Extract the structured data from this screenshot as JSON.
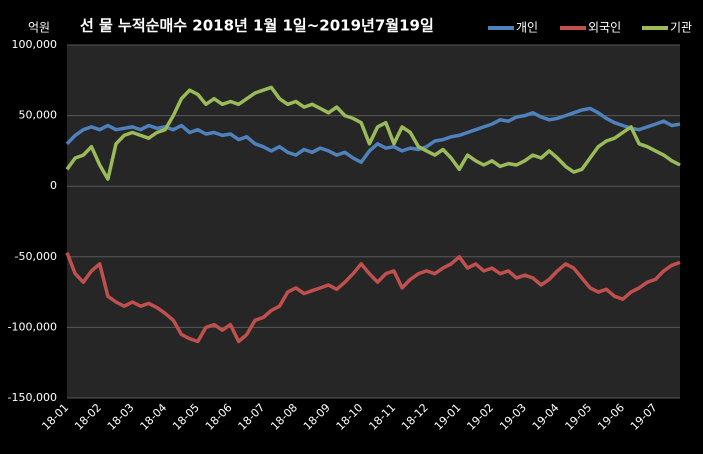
{
  "chart_data": {
    "type": "line",
    "title": "선 물 누적순매수 2018년 1월 1일~2019년7월19일",
    "y_label": "억원",
    "legend": "top-right",
    "grid": true,
    "categories": [
      "18-01",
      null,
      null,
      null,
      "18-02",
      null,
      null,
      null,
      "18-03",
      null,
      null,
      null,
      "18-04",
      null,
      null,
      null,
      "18-05",
      null,
      null,
      null,
      "18-06",
      null,
      null,
      null,
      "18-07",
      null,
      null,
      null,
      "18-08",
      null,
      null,
      null,
      "18-09",
      null,
      null,
      null,
      "18-10",
      null,
      null,
      null,
      "18-11",
      null,
      null,
      null,
      "18-12",
      null,
      null,
      null,
      "19-01",
      null,
      null,
      null,
      "19-02",
      null,
      null,
      null,
      "19-03",
      null,
      null,
      null,
      "19-04",
      null,
      null,
      null,
      "19-05",
      null,
      null,
      null,
      "19-06",
      null,
      null,
      null,
      "19-07",
      null,
      null,
      null
    ],
    "ylim": [
      -150000,
      100000
    ],
    "yticks": [
      {
        "value": 100000,
        "label": "100,000"
      },
      {
        "value": 50000,
        "label": "50,000"
      },
      0,
      {
        "value": -50000,
        "label": "-50,000"
      },
      {
        "value": -100000,
        "label": "-100,000"
      },
      {
        "value": -150000,
        "label": "-150,000"
      }
    ],
    "series": [
      {
        "name": "개인",
        "color": "#4f81bd",
        "values": [
          30000,
          36000,
          40000,
          42000,
          40000,
          43000,
          40000,
          41000,
          42000,
          40000,
          43000,
          41000,
          42000,
          40000,
          43000,
          38000,
          40000,
          37000,
          38000,
          36000,
          37000,
          33000,
          35000,
          30000,
          28000,
          25000,
          28000,
          24000,
          22000,
          26000,
          24000,
          27000,
          25000,
          22000,
          24000,
          20000,
          17000,
          25000,
          30000,
          27000,
          28000,
          25000,
          27000,
          26000,
          28000,
          32000,
          33000,
          35000,
          36000,
          38000,
          40000,
          42000,
          44000,
          47000,
          46000,
          49000,
          50000,
          52000,
          49000,
          47000,
          48000,
          50000,
          52000,
          54000,
          55000,
          52000,
          48000,
          45000,
          43000,
          41000,
          40000,
          42000,
          44000,
          46000,
          43000,
          44000
        ]
      },
      {
        "name": "외국인",
        "color": "#c0504d",
        "values": [
          -47000,
          -62000,
          -68000,
          -60000,
          -55000,
          -78000,
          -82000,
          -85000,
          -82000,
          -85000,
          -83000,
          -86000,
          -90000,
          -95000,
          -105000,
          -108000,
          -110000,
          -100000,
          -98000,
          -102000,
          -98000,
          -110000,
          -105000,
          -95000,
          -93000,
          -88000,
          -85000,
          -75000,
          -72000,
          -76000,
          -74000,
          -72000,
          -70000,
          -73000,
          -68000,
          -62000,
          -55000,
          -62000,
          -68000,
          -62000,
          -60000,
          -72000,
          -66000,
          -62000,
          -60000,
          -62000,
          -58000,
          -55000,
          -50000,
          -58000,
          -55000,
          -60000,
          -58000,
          -62000,
          -60000,
          -65000,
          -63000,
          -65000,
          -70000,
          -66000,
          -60000,
          -55000,
          -58000,
          -65000,
          -72000,
          -75000,
          -73000,
          -78000,
          -80000,
          -75000,
          -72000,
          -68000,
          -66000,
          -60000,
          -56000,
          -54000
        ]
      },
      {
        "name": "기관",
        "color": "#9bbb59",
        "values": [
          12000,
          20000,
          22000,
          28000,
          15000,
          5000,
          30000,
          36000,
          38000,
          36000,
          34000,
          38000,
          40000,
          50000,
          62000,
          68000,
          65000,
          58000,
          62000,
          58000,
          60000,
          58000,
          62000,
          66000,
          68000,
          70000,
          62000,
          58000,
          60000,
          56000,
          58000,
          55000,
          52000,
          56000,
          50000,
          48000,
          45000,
          30000,
          42000,
          45000,
          30000,
          42000,
          38000,
          28000,
          25000,
          22000,
          26000,
          20000,
          12000,
          22000,
          18000,
          15000,
          18000,
          14000,
          16000,
          15000,
          18000,
          22000,
          20000,
          25000,
          20000,
          14000,
          10000,
          12000,
          20000,
          28000,
          32000,
          34000,
          38000,
          42000,
          30000,
          28000,
          25000,
          22000,
          18000,
          15000
        ]
      }
    ]
  }
}
